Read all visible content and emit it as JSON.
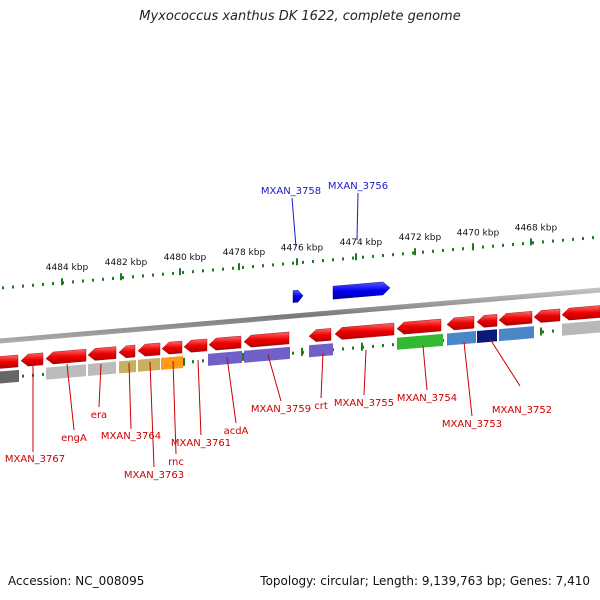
{
  "title": "Myxococcus xanthus DK 1622, complete genome",
  "footer": {
    "accession_label": "Accession:",
    "accession": "NC_008095",
    "topology_label": "Topology:",
    "topology": "circular",
    "length_label": "Length:",
    "length": "9,139,763 bp",
    "genes_label": "Genes:",
    "genes": "7,410"
  },
  "colors": {
    "forward_gene": "#1a1aff",
    "reverse_gene": "#ff0000",
    "tick": "#1f7a1f",
    "label_forward": "#1a1acc",
    "label_reverse": "#cc0000",
    "backbone": "#888888"
  },
  "scale_ticks": [
    "4484 kbp",
    "4482 kbp",
    "4480 kbp",
    "4478 kbp",
    "4476 kbp",
    "4474 kbp",
    "4472 kbp",
    "4470 kbp",
    "4468 kbp"
  ],
  "genes_forward": [
    {
      "label": "MXAN_3758"
    },
    {
      "label": "MXAN_3756"
    }
  ],
  "genes_reverse": [
    {
      "label": "MXAN_3767"
    },
    {
      "label": "engA"
    },
    {
      "label": "era"
    },
    {
      "label": "MXAN_3764"
    },
    {
      "label": "MXAN_3763"
    },
    {
      "label": "rnc"
    },
    {
      "label": "MXAN_3761"
    },
    {
      "label": "acdA"
    },
    {
      "label": "MXAN_3759"
    },
    {
      "label": "crt"
    },
    {
      "label": "MXAN_3755"
    },
    {
      "label": "MXAN_3754"
    },
    {
      "label": "MXAN_3753"
    },
    {
      "label": "MXAN_3752"
    }
  ]
}
